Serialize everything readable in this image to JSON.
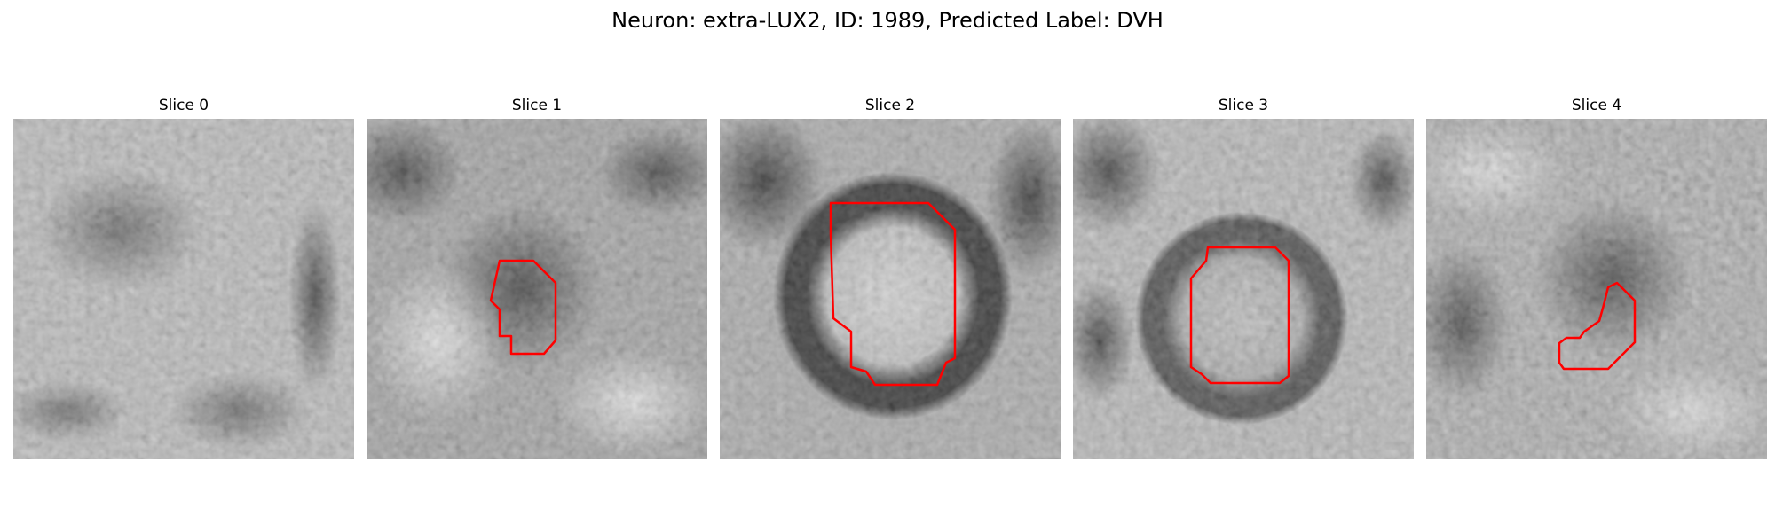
{
  "figure": {
    "title": "Neuron: extra-LUX2, ID: 1989, Predicted Label: DVH"
  },
  "panels": [
    {
      "title": "Slice 0",
      "has_contour": false
    },
    {
      "title": "Slice 1",
      "has_contour": true
    },
    {
      "title": "Slice 2",
      "has_contour": true
    },
    {
      "title": "Slice 3",
      "has_contour": true
    },
    {
      "title": "Slice 4",
      "has_contour": true
    }
  ],
  "colors": {
    "contour": "#ff0000",
    "background": "#ffffff"
  },
  "image_style": "grayscale pixelated microscopy crop with red segmentation contour"
}
